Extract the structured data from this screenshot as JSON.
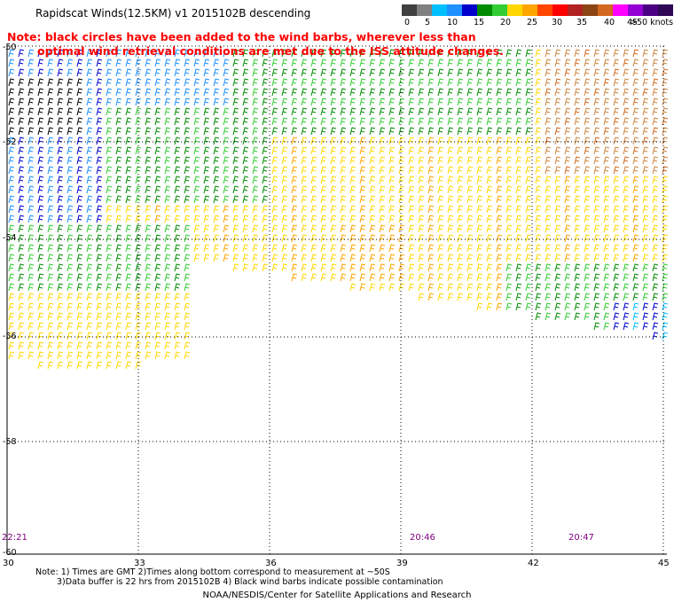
{
  "title": "Rapidscat Winds(12.5KM) v1 2015102B descending",
  "note": {
    "line1": "Note: black circles have been added to the wind barbs, wherever less than",
    "line2": "optimal wind retrieval conditions are met due to the ISS attitude changes."
  },
  "legend": {
    "ticks": [
      "0",
      "5",
      "10",
      "15",
      "20",
      "25",
      "30",
      "35",
      "40",
      "45",
      ">50 knots"
    ],
    "colors": [
      "#404040",
      "#808080",
      "#00bfff",
      "#1e90ff",
      "#0000cd",
      "#008b00",
      "#32cd32",
      "#ffd700",
      "#ffa500",
      "#ff4500",
      "#ff0000",
      "#b22222",
      "#8b4513",
      "#d2691e",
      "#ff00ff",
      "#9400d3",
      "#4b0082",
      "#2e0854"
    ]
  },
  "axes": {
    "latitudes": [
      "-50",
      "-52",
      "-54",
      "-56",
      "-58",
      "-60"
    ],
    "longitudes": [
      "30",
      "33",
      "36",
      "39",
      "42",
      "45"
    ]
  },
  "times": [
    "22:21",
    "20:46",
    "20:47"
  ],
  "footer": {
    "line1": "Note: 1) Times are GMT 2)Times along bottom correspond to measurement at ~50S",
    "line2": "3)Data buffer is 22 hrs from 2015102B 4) Black wind barbs indicate possible contamination",
    "credit": "NOAA/NESDIS/Center for Satellite Applications and Research"
  }
}
